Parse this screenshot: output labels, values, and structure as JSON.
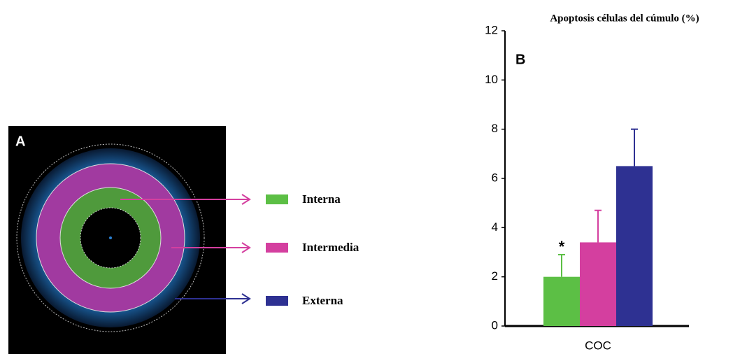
{
  "panel_a": {
    "label": "A"
  },
  "chart_data": {
    "type": "bar",
    "panel_label": "B",
    "title": "Apoptosis células del cúmulo (%)",
    "categories": [
      "COC"
    ],
    "series": [
      {
        "name": "Interna",
        "color": "#5cbf45",
        "values": [
          2.0
        ],
        "errors": [
          0.9
        ]
      },
      {
        "name": "Intermedia",
        "color": "#d43f9f",
        "values": [
          3.4
        ],
        "errors": [
          1.3
        ]
      },
      {
        "name": "Externa",
        "color": "#2e3192",
        "values": [
          6.5
        ],
        "errors": [
          1.5
        ]
      }
    ],
    "annotation": "*",
    "ylim": [
      0,
      12
    ],
    "yticks": [
      0,
      2,
      4,
      6,
      8,
      10,
      12
    ],
    "grid": false
  }
}
